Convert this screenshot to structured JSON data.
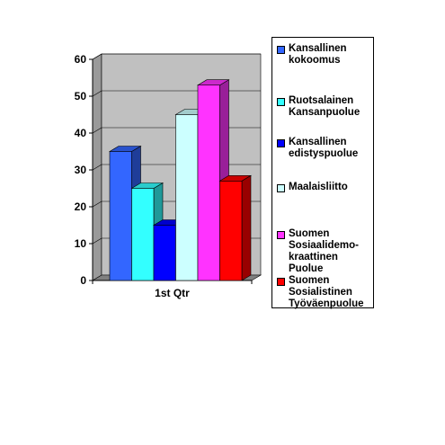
{
  "chart_data": {
    "type": "bar",
    "categories": [
      "1st Qtr"
    ],
    "series": [
      {
        "name": "Kansallinen\nkokoomus",
        "values": [
          35
        ],
        "color": "#3366FF",
        "side": "#1F3D99",
        "top": "#2952CC"
      },
      {
        "name": "Ruotsalainen\nKansanpuolue",
        "values": [
          25
        ],
        "color": "#33FFFF",
        "side": "#1F9999",
        "top": "#29CCCC"
      },
      {
        "name": "Kansallinen\nedistyspuolue",
        "values": [
          15
        ],
        "color": "#0000FF",
        "side": "#000099",
        "top": "#0000CC"
      },
      {
        "name": "Maalaisliitto",
        "values": [
          45
        ],
        "color": "#CCFFFF",
        "side": "#7A9999",
        "top": "#A3CCCC"
      },
      {
        "name": "Suomen\nSosiaalidemo-\nkraattinen\nPuolue",
        "values": [
          53
        ],
        "color": "#FF33FF",
        "side": "#991F99",
        "top": "#CC29CC"
      },
      {
        "name": "Suomen\nSosialistinen\nTyöväenpuolue",
        "values": [
          27
        ],
        "color": "#FF0000",
        "side": "#990000",
        "top": "#CC0000"
      }
    ],
    "yticks": [
      "0",
      "10",
      "20",
      "30",
      "40",
      "50",
      "60"
    ],
    "ylim": [
      0,
      60
    ],
    "grid": true,
    "legend_position": "right",
    "wall_color": "#C0C0C0"
  }
}
